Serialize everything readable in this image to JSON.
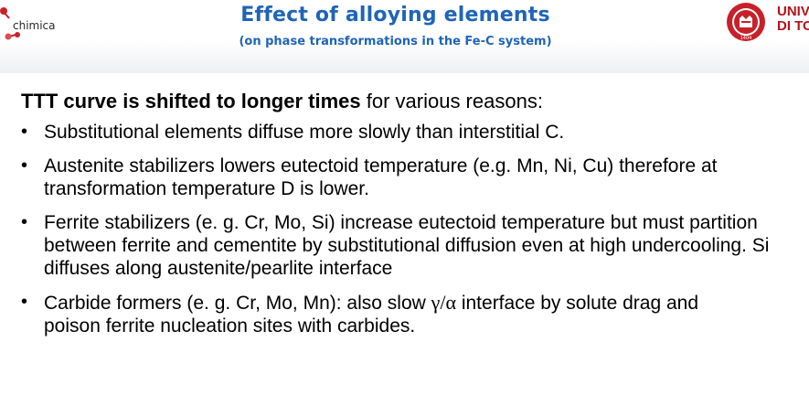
{
  "header": {
    "left_logo_text": "chimica",
    "title": "Effect of alloying elements",
    "subtitle": "(on phase transformations in the Fe-C system)",
    "university_text_line1": "UNIV",
    "university_text_line2": "DI TO",
    "seal_year": "1404"
  },
  "content": {
    "intro_bold": "TTT curve is shifted to longer times",
    "intro_rest": " for various reasons:",
    "bullets": [
      "Substitutional elements diffuse more slowly than interstitial C.",
      "Austenite stabilizers lowers eutectoid temperature (e.g. Mn, Ni, Cu) therefore at transformation temperature D is lower.",
      "Ferrite stabilizers (e. g. Cr, Mo, Si) increase eutectoid  temperature but must partition between ferrite and cementite by substitutional diffusion even at high undercooling. Si diffuses along austenite/pearlite interface",
      "poison ferrite nucleation sites with carbides."
    ],
    "bullet4_before": "Carbide formers (e. g. Cr, Mo, Mn): also slow ",
    "bullet4_greek": "γ/α",
    "bullet4_after": " interface by solute drag and"
  },
  "colors": {
    "title_blue": "#1f64b8",
    "logo_red": "#b5121b",
    "seal_red": "#c8202a"
  }
}
